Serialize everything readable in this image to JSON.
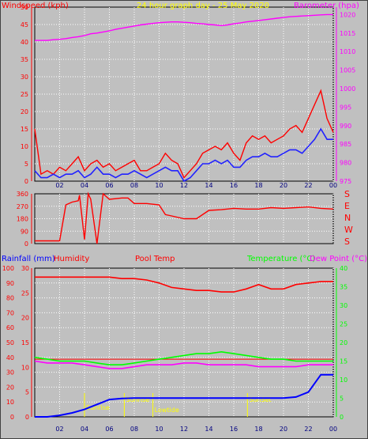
{
  "top": {
    "left_axis_label": "Windspeed (kph)",
    "title": "24 hour graph day - 25 May 2020",
    "right_axis_label": "Barometer (hpa)"
  },
  "bottom": {
    "rainfall_label": "Rainfall (mm)",
    "humidity_label": "Humidity",
    "pooltemp_label": "Pool Temp",
    "temperature_label": "Temperature (°C)",
    "dewpoint_label": "Dew Point (°C)"
  },
  "compass": [
    "S",
    "E",
    "N",
    "W",
    "S"
  ],
  "x_ticks": [
    "02",
    "04",
    "06",
    "08",
    "10",
    "12",
    "14",
    "16",
    "18",
    "20",
    "22",
    "00"
  ],
  "annotations": [
    "Sunrise",
    "Sunrise",
    "Lowtide",
    "SunSet"
  ],
  "colors": {
    "background": "#c0c0c0",
    "wind_gust": "#ff0000",
    "wind_avg": "#2222ff",
    "barometer": "#ff00ff",
    "direction": "#ff0000",
    "humidity": "#ff0000",
    "temperature": "#00ff00",
    "dewpoint": "#ff00ff",
    "pool": "#ff0000",
    "rainfall": "#0000ff",
    "axis_red": "#ff0000",
    "axis_green": "#00ff00",
    "annotation": "#ffff00",
    "grid": "#ffffff"
  },
  "chart_data": [
    {
      "type": "line",
      "name": "wind-barometer",
      "title": "24 hour graph day - 25 May 2020",
      "ylabel": "Windspeed (kph)",
      "y2label": "Barometer (hpa)",
      "yticks": [
        0,
        5,
        10,
        15,
        20,
        25,
        30,
        35,
        40,
        45,
        50
      ],
      "ylim": [
        0,
        50
      ],
      "y2ticks": [
        975,
        980,
        985,
        990,
        995,
        1000,
        1005,
        1010,
        1015,
        1020
      ],
      "y2lim": [
        975,
        1022
      ],
      "x_hours": [
        0,
        0.5,
        1,
        1.5,
        2,
        2.5,
        3,
        3.5,
        4,
        4.5,
        5,
        5.5,
        6,
        6.5,
        7,
        7.5,
        8,
        8.5,
        9,
        9.5,
        10,
        10.5,
        11,
        11.5,
        12,
        12.5,
        13,
        13.5,
        14,
        14.5,
        15,
        15.5,
        16,
        16.5,
        17,
        17.5,
        18,
        18.5,
        19,
        19.5,
        20,
        20.5,
        21,
        21.5,
        22,
        22.5,
        23,
        23.5,
        24
      ],
      "series": [
        {
          "key": "gust",
          "values": [
            15,
            2,
            3,
            2,
            4,
            3,
            5,
            7,
            3,
            5,
            6,
            4,
            5,
            3,
            4,
            5,
            6,
            3,
            3,
            4,
            5,
            8,
            6,
            5,
            1,
            3,
            5,
            8,
            9,
            10,
            9,
            11,
            8,
            6,
            11,
            13,
            12,
            13,
            11,
            12,
            13,
            15,
            16,
            14,
            18,
            22,
            26,
            18,
            14
          ]
        },
        {
          "key": "avg",
          "values": [
            3,
            1,
            1,
            2,
            1,
            2,
            2,
            3,
            1,
            2,
            4,
            2,
            2,
            1,
            2,
            2,
            3,
            2,
            1,
            2,
            3,
            4,
            3,
            3,
            0,
            1,
            3,
            5,
            5,
            6,
            5,
            6,
            4,
            4,
            6,
            7,
            7,
            8,
            7,
            7,
            8,
            9,
            9,
            8,
            10,
            12,
            15,
            12,
            12
          ]
        },
        {
          "key": "barometer",
          "values": [
            1013,
            1013,
            1013,
            1013.2,
            1013.3,
            1013.5,
            1013.8,
            1014,
            1014.3,
            1014.8,
            1015,
            1015.3,
            1015.6,
            1016,
            1016.3,
            1016.6,
            1016.9,
            1017.2,
            1017.4,
            1017.6,
            1017.8,
            1017.9,
            1018,
            1018,
            1017.9,
            1017.8,
            1017.6,
            1017.5,
            1017.3,
            1017.2,
            1017,
            1017.2,
            1017.5,
            1017.7,
            1018,
            1018.2,
            1018.4,
            1018.6,
            1018.8,
            1019,
            1019.2,
            1019.4,
            1019.5,
            1019.6,
            1019.7,
            1019.8,
            1019.9,
            1020,
            1020
          ]
        }
      ]
    },
    {
      "type": "line",
      "name": "wind-direction",
      "yticks": [
        0,
        90,
        180,
        270,
        360
      ],
      "ylim": [
        0,
        360
      ],
      "x_hours": [
        0,
        1,
        2,
        2.5,
        3,
        3.5,
        3.6,
        4,
        4.3,
        4.5,
        5,
        5.5,
        6,
        7,
        7.5,
        8,
        9,
        10,
        10.5,
        11,
        12,
        13,
        14,
        15,
        16,
        17,
        18,
        19,
        20,
        21,
        22,
        23,
        24
      ],
      "values": [
        20,
        20,
        20,
        280,
        300,
        310,
        350,
        30,
        360,
        320,
        0,
        360,
        320,
        330,
        330,
        290,
        290,
        280,
        210,
        200,
        180,
        180,
        240,
        245,
        255,
        250,
        250,
        260,
        255,
        260,
        265,
        255,
        250
      ]
    },
    {
      "type": "line",
      "name": "temperature-humidity",
      "ylabel": "Rainfall (mm)",
      "humidity_ticks": [
        0,
        10,
        20,
        30,
        40,
        50,
        60,
        70,
        80,
        90,
        100
      ],
      "humidity_lim": [
        0,
        100
      ],
      "rain_ticks": [
        0,
        5,
        10,
        15,
        20,
        25,
        30
      ],
      "rain_lim": [
        0,
        30
      ],
      "temp_ticks": [
        0,
        5,
        10,
        15,
        20,
        25,
        30,
        35,
        40
      ],
      "temp_lim": [
        0,
        40
      ],
      "x_hours": [
        0,
        1,
        2,
        3,
        4,
        5,
        6,
        7,
        8,
        9,
        10,
        11,
        12,
        13,
        14,
        15,
        16,
        17,
        18,
        19,
        20,
        21,
        22,
        23,
        24
      ],
      "series": [
        {
          "key": "humidity",
          "values": [
            94,
            94,
            94,
            94,
            94,
            94,
            94,
            93,
            93,
            92,
            90,
            87,
            86,
            85,
            85,
            84,
            84,
            86,
            89,
            86,
            86,
            89,
            90,
            91,
            91
          ]
        },
        {
          "key": "temperature",
          "values": [
            16,
            15.5,
            15,
            15,
            15,
            14.5,
            14,
            14,
            14.5,
            15,
            15.5,
            16,
            16.5,
            17,
            17,
            17.5,
            17,
            16.5,
            16,
            15.5,
            15.5,
            15,
            15,
            15,
            15
          ]
        },
        {
          "key": "dewpoint",
          "values": [
            15,
            14.5,
            14.5,
            14.5,
            14,
            13.5,
            13,
            13,
            13.5,
            14,
            14,
            14,
            14.5,
            14.5,
            14,
            14,
            14,
            14,
            13.5,
            13.5,
            13.5,
            13.5,
            14,
            14,
            14
          ]
        },
        {
          "key": "pool",
          "values": [
            15.5,
            15.5,
            15.5,
            15.5,
            15.5,
            15.5,
            15.5,
            15.5,
            15.5,
            15.5,
            15.5,
            15.5,
            15.5,
            15.5,
            15.5,
            15.5,
            15.5,
            15.5,
            15.5,
            15.5,
            15.5,
            15.5,
            15.5,
            15.5,
            15.5
          ]
        },
        {
          "key": "rainfall",
          "values": [
            0,
            0,
            0.3,
            0.8,
            1.5,
            2.5,
            3.5,
            3.7,
            3.8,
            3.8,
            3.8,
            3.8,
            3.8,
            3.8,
            3.8,
            3.8,
            3.8,
            3.8,
            3.8,
            3.8,
            3.8,
            4,
            5,
            8.5,
            8.5
          ]
        }
      ]
    }
  ]
}
